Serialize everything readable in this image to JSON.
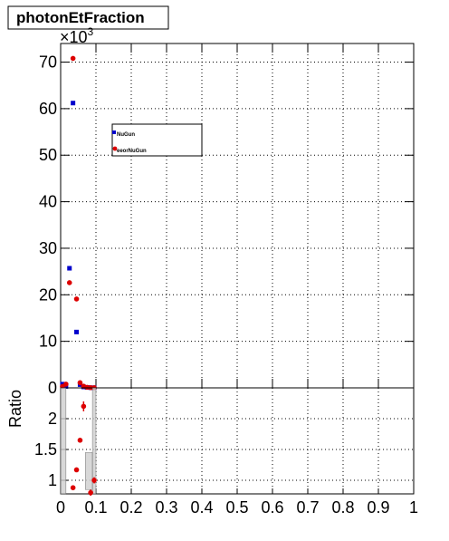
{
  "chart_data": [
    {
      "type": "scatter",
      "title": "photonEtFraction",
      "multiplier": "×10",
      "multiplier_exponent": "3",
      "xlim": [
        0,
        1
      ],
      "ylim": [
        0,
        74000
      ],
      "yticks": [
        0,
        10000,
        20000,
        30000,
        40000,
        50000,
        60000,
        70000
      ],
      "ytick_labels": [
        "0",
        "10",
        "20",
        "30",
        "40",
        "50",
        "60",
        "70"
      ],
      "grid": true,
      "legend_placement": "upper-left (inside plot)",
      "series": [
        {
          "name": "NuGun",
          "color": "#0000cc",
          "marker": "square",
          "points": [
            {
              "x": 0.005,
              "y": 800
            },
            {
              "x": 0.015,
              "y": 300
            },
            {
              "x": 0.025,
              "y": 25700
            },
            {
              "x": 0.035,
              "y": 61200
            },
            {
              "x": 0.045,
              "y": 12000
            },
            {
              "x": 0.055,
              "y": 700
            },
            {
              "x": 0.065,
              "y": 200
            },
            {
              "x": 0.075,
              "y": 100
            },
            {
              "x": 0.085,
              "y": 40
            },
            {
              "x": 0.095,
              "y": 20
            }
          ]
        },
        {
          "name": "eeorNuGun",
          "color": "#dd0000",
          "marker": "circle",
          "points": [
            {
              "x": 0.005,
              "y": 300
            },
            {
              "x": 0.015,
              "y": 800
            },
            {
              "x": 0.025,
              "y": 22600
            },
            {
              "x": 0.035,
              "y": 70800
            },
            {
              "x": 0.045,
              "y": 19100
            },
            {
              "x": 0.055,
              "y": 1100
            },
            {
              "x": 0.065,
              "y": 350
            },
            {
              "x": 0.075,
              "y": 120
            },
            {
              "x": 0.085,
              "y": 50
            },
            {
              "x": 0.095,
              "y": 30
            }
          ]
        }
      ]
    },
    {
      "type": "scatter",
      "ylabel": "Ratio",
      "xlim": [
        0,
        1
      ],
      "ylim": [
        0.78,
        2.5
      ],
      "yticks": [
        1,
        1.5,
        2
      ],
      "ytick_labels": [
        "1",
        "1.5",
        "2"
      ],
      "xticks": [
        0,
        0.1,
        0.2,
        0.3,
        0.4,
        0.5,
        0.6,
        0.7,
        0.8,
        0.9,
        1
      ],
      "xtick_labels": [
        "0",
        "0.1",
        "0.2",
        "0.3",
        "0.4",
        "0.5",
        "0.6",
        "0.7",
        "0.8",
        "0.9",
        "1"
      ],
      "grid": true,
      "series": [
        {
          "name": "",
          "color": "#dd0000",
          "marker": "circle",
          "points": [
            {
              "x": 0.035,
              "y": 0.88,
              "err": 0.02
            },
            {
              "x": 0.045,
              "y": 1.17,
              "err": 0.02
            },
            {
              "x": 0.055,
              "y": 1.65,
              "err": 0.03
            },
            {
              "x": 0.065,
              "y": 2.2,
              "err": 0.08
            },
            {
              "x": 0.085,
              "y": 0.8,
              "err": 0.05
            },
            {
              "x": 0.095,
              "y": 1.0,
              "err": 0.05
            }
          ]
        }
      ],
      "uncertainty_bands": [
        {
          "x0": 0.0,
          "x1": 0.015,
          "y0": 0.78,
          "y1": 2.5
        },
        {
          "x0": 0.07,
          "x1": 0.09,
          "y0": 0.85,
          "y1": 1.45
        },
        {
          "x0": 0.09,
          "x1": 0.1,
          "y0": 0.78,
          "y1": 2.5
        }
      ]
    }
  ]
}
